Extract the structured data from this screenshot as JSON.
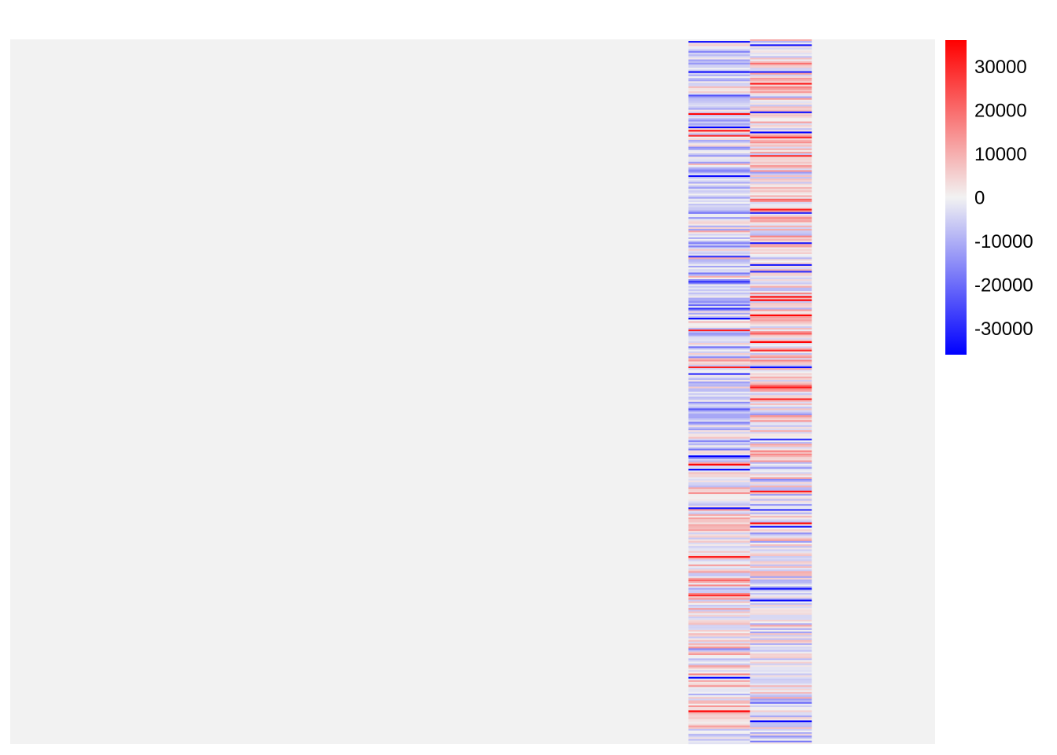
{
  "chart_data": {
    "type": "heatmap",
    "title": "",
    "xlabel": "",
    "ylabel": "",
    "grid": false,
    "columns": 15,
    "rows": 420,
    "filled_columns": [
      11,
      12
    ],
    "empty_cell_color": "#f2f2f2",
    "value_range": [
      -36000,
      36000
    ],
    "color_scale": {
      "low": "#0000ff",
      "mid": "#f2f2f2",
      "high": "#ff0000"
    },
    "legend": {
      "position": "right",
      "ticks": [
        "30000",
        "20000",
        "10000",
        "0",
        "-10000",
        "-20000",
        "-30000"
      ],
      "tick_values": [
        30000,
        20000,
        10000,
        0,
        -10000,
        -20000,
        -30000
      ]
    },
    "column_11_summary": "dense horizontal stripes mixing blue and red, blue-leaning in the top half",
    "column_12_summary": "dense horizontal stripes mixing red and blue, red-leaning in the top half, blue-leaning near the bottom",
    "value_seed": 7
  }
}
